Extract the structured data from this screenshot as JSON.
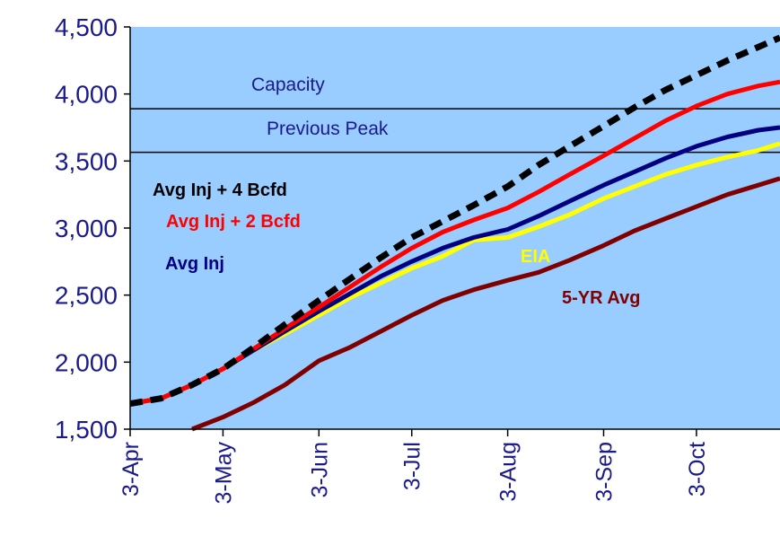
{
  "chart_data": {
    "type": "line",
    "title": "",
    "xlabel": "",
    "ylabel": "",
    "ylim": [
      1500,
      4500
    ],
    "y_ticks": [
      "4,500",
      "4,000",
      "3,500",
      "3,000",
      "2,500",
      "2,000",
      "1,500"
    ],
    "y_tick_values": [
      4500,
      4000,
      3500,
      3000,
      2500,
      2000,
      1500
    ],
    "x_ticks": [
      "3-Apr",
      "3-May",
      "3-Jun",
      "3-Jul",
      "3-Aug",
      "3-Sep",
      "3-Oct"
    ],
    "x_range": [
      "3-Apr",
      "30-Oct"
    ],
    "grid": false,
    "plot_background": "#99ccff",
    "reference_lines": [
      {
        "label": "Capacity",
        "value": 3890
      },
      {
        "label": "Previous Peak",
        "value": 3565
      }
    ],
    "series": [
      {
        "name": "5-YR Avg",
        "color": "#800000",
        "style": "solid",
        "points": [
          [
            "23-Apr",
            1500
          ],
          [
            "3-May",
            1590
          ],
          [
            "13-May",
            1700
          ],
          [
            "23-May",
            1830
          ],
          [
            "3-Jun",
            2010
          ],
          [
            "13-Jun",
            2110
          ],
          [
            "23-Jun",
            2230
          ],
          [
            "3-Jul",
            2350
          ],
          [
            "13-Jul",
            2460
          ],
          [
            "23-Jul",
            2540
          ],
          [
            "3-Aug",
            2610
          ],
          [
            "13-Aug",
            2670
          ],
          [
            "23-Aug",
            2760
          ],
          [
            "3-Sep",
            2870
          ],
          [
            "13-Sep",
            2980
          ],
          [
            "23-Sep",
            3070
          ],
          [
            "3-Oct",
            3160
          ],
          [
            "13-Oct",
            3250
          ],
          [
            "23-Oct",
            3320
          ],
          [
            "30-Oct",
            3370
          ]
        ]
      },
      {
        "name": "EIA",
        "color": "#ffff00",
        "style": "solid",
        "points": [
          [
            "3-Apr",
            1690
          ],
          [
            "13-Apr",
            1730
          ],
          [
            "23-Apr",
            1830
          ],
          [
            "3-May",
            1950
          ],
          [
            "13-May",
            2090
          ],
          [
            "23-May",
            2210
          ],
          [
            "3-Jun",
            2350
          ],
          [
            "13-Jun",
            2480
          ],
          [
            "23-Jun",
            2590
          ],
          [
            "3-Jul",
            2700
          ],
          [
            "13-Jul",
            2790
          ],
          [
            "23-Jul",
            2910
          ],
          [
            "3-Aug",
            2930
          ],
          [
            "13-Aug",
            3010
          ],
          [
            "23-Aug",
            3100
          ],
          [
            "3-Sep",
            3220
          ],
          [
            "13-Sep",
            3310
          ],
          [
            "23-Sep",
            3400
          ],
          [
            "3-Oct",
            3470
          ],
          [
            "13-Oct",
            3530
          ],
          [
            "23-Oct",
            3580
          ],
          [
            "30-Oct",
            3630
          ]
        ]
      },
      {
        "name": "Avg Inj",
        "color": "#000080",
        "style": "solid",
        "points": [
          [
            "3-Apr",
            1690
          ],
          [
            "13-Apr",
            1730
          ],
          [
            "23-Apr",
            1830
          ],
          [
            "3-May",
            1950
          ],
          [
            "13-May",
            2090
          ],
          [
            "23-May",
            2230
          ],
          [
            "3-Jun",
            2380
          ],
          [
            "13-Jun",
            2510
          ],
          [
            "23-Jun",
            2640
          ],
          [
            "3-Jul",
            2750
          ],
          [
            "13-Jul",
            2850
          ],
          [
            "23-Jul",
            2930
          ],
          [
            "3-Aug",
            2990
          ],
          [
            "13-Aug",
            3090
          ],
          [
            "23-Aug",
            3200
          ],
          [
            "3-Sep",
            3320
          ],
          [
            "13-Sep",
            3420
          ],
          [
            "23-Sep",
            3520
          ],
          [
            "3-Oct",
            3610
          ],
          [
            "13-Oct",
            3680
          ],
          [
            "23-Oct",
            3730
          ],
          [
            "30-Oct",
            3750
          ]
        ]
      },
      {
        "name": "Avg Inj + 2 Bcfd",
        "color": "#ff0000",
        "style": "solid",
        "points": [
          [
            "3-Apr",
            1690
          ],
          [
            "13-Apr",
            1730
          ],
          [
            "23-Apr",
            1830
          ],
          [
            "3-May",
            1950
          ],
          [
            "13-May",
            2100
          ],
          [
            "23-May",
            2250
          ],
          [
            "3-Jun",
            2410
          ],
          [
            "13-Jun",
            2560
          ],
          [
            "23-Jun",
            2710
          ],
          [
            "3-Jul",
            2850
          ],
          [
            "13-Jul",
            2970
          ],
          [
            "23-Jul",
            3060
          ],
          [
            "3-Aug",
            3150
          ],
          [
            "13-Aug",
            3270
          ],
          [
            "23-Aug",
            3400
          ],
          [
            "3-Sep",
            3540
          ],
          [
            "13-Sep",
            3670
          ],
          [
            "23-Sep",
            3800
          ],
          [
            "3-Oct",
            3910
          ],
          [
            "13-Oct",
            4000
          ],
          [
            "23-Oct",
            4060
          ],
          [
            "30-Oct",
            4090
          ]
        ]
      },
      {
        "name": "Avg Inj + 4 Bcfd",
        "color": "#000000",
        "style": "dashed",
        "points": [
          [
            "3-Apr",
            1690
          ],
          [
            "13-Apr",
            1730
          ],
          [
            "23-Apr",
            1830
          ],
          [
            "3-May",
            1950
          ],
          [
            "13-May",
            2110
          ],
          [
            "23-May",
            2280
          ],
          [
            "3-Jun",
            2460
          ],
          [
            "13-Jun",
            2620
          ],
          [
            "23-Jun",
            2780
          ],
          [
            "3-Jul",
            2930
          ],
          [
            "13-Jul",
            3050
          ],
          [
            "23-Jul",
            3170
          ],
          [
            "3-Aug",
            3310
          ],
          [
            "13-Aug",
            3470
          ],
          [
            "23-Aug",
            3610
          ],
          [
            "3-Sep",
            3760
          ],
          [
            "13-Sep",
            3900
          ],
          [
            "23-Sep",
            4030
          ],
          [
            "3-Oct",
            4140
          ],
          [
            "13-Oct",
            4250
          ],
          [
            "23-Oct",
            4350
          ],
          [
            "30-Oct",
            4420
          ]
        ]
      }
    ],
    "legend_labels": [
      {
        "text": "Avg Inj + 4 Bcfd",
        "color": "#000000",
        "series": "Avg Inj + 4 Bcfd"
      },
      {
        "text": "Avg Inj + 2 Bcfd",
        "color": "#ff0000",
        "series": "Avg Inj + 2 Bcfd"
      },
      {
        "text": "Avg Inj",
        "color": "#000080",
        "series": "Avg Inj"
      },
      {
        "text": "EIA",
        "color": "#ffff00",
        "series": "EIA"
      },
      {
        "text": "5-YR Avg",
        "color": "#800000",
        "series": "5-YR Avg"
      }
    ],
    "legend_placement": "inline"
  }
}
